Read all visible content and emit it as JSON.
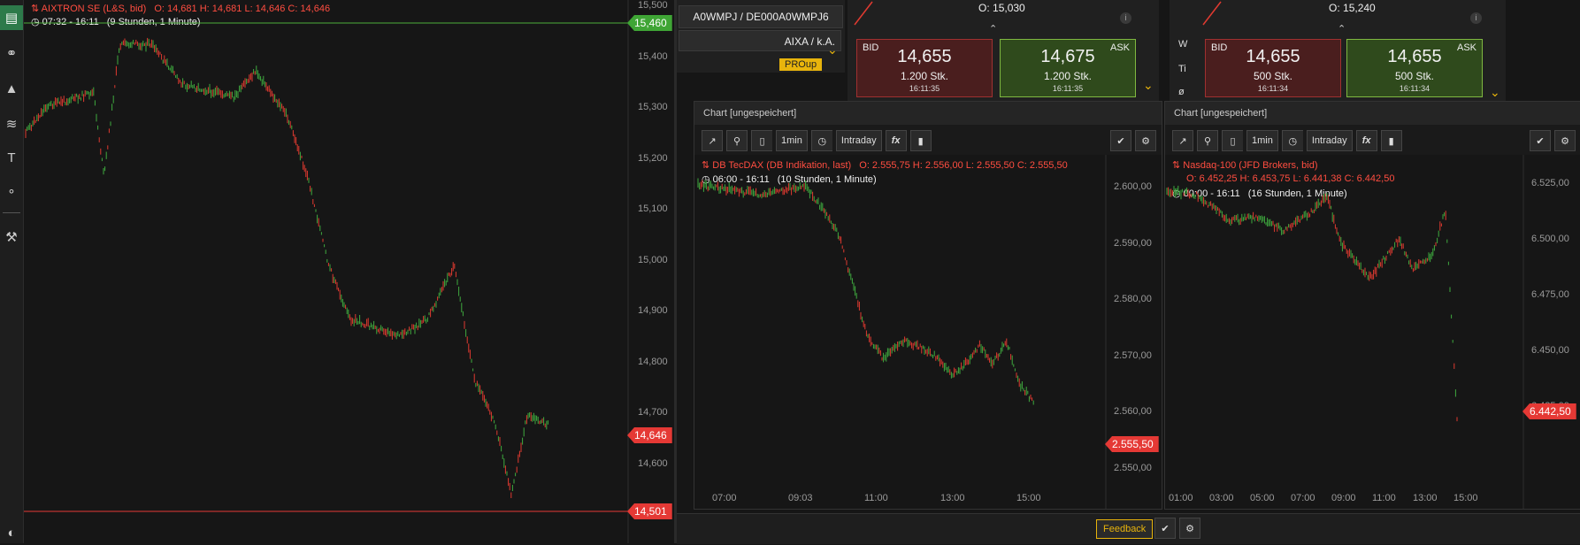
{
  "main": {
    "title": "AIXTRON SE (L&S, bid)",
    "ohlc": "O: 14,681  H: 14,681  L: 14,646  C: 14,646",
    "period": "07:32 - 16:11",
    "period_desc": "(9 Stunden, 1 Minute)",
    "y_ticks": [
      "15,500",
      "15,400",
      "15,300",
      "15,200",
      "15,100",
      "15,000",
      "14,900",
      "14,800",
      "14,700",
      "14,600"
    ],
    "tag_high": "15,460",
    "tag_last": "14,646",
    "tag_low": "14,501"
  },
  "top_panel": {
    "symbol": "A0WMPJ / DE000A0WMPJ6",
    "ticker": "AIXA / k.A.",
    "badge": "PROup"
  },
  "quote1": {
    "o_label": "O:",
    "o_value": "15,030",
    "bid_label": "BID",
    "bid_price": "14,655",
    "bid_qty": "1.200 Stk.",
    "bid_time": "16:11:35",
    "ask_label": "ASK",
    "ask_price": "14,675",
    "ask_qty": "1.200 Stk.",
    "ask_time": "16:11:35"
  },
  "quote2": {
    "o_label": "O:",
    "o_value": "15,240",
    "side_w": "W",
    "side_ti": "Ti",
    "side_o": "ø",
    "bid_label": "BID",
    "bid_price": "14,655",
    "bid_qty": "500 Stk.",
    "bid_time": "16:11:34",
    "ask_label": "ASK",
    "ask_price": "14,655",
    "ask_qty": "500 Stk.",
    "ask_time": "16:11:34"
  },
  "chart2": {
    "window_title": "Chart [ungespeichert]",
    "interval": "1min",
    "range": "Intraday",
    "fx": "fx",
    "title": "DB TecDAX (DB Indikation, last)",
    "ohlc": "O: 2.555,75  H: 2.556,00  L: 2.555,50  C: 2.555,50",
    "period": "06:00 - 16:11",
    "period_desc": "(10 Stunden, 1 Minute)",
    "y_ticks": [
      "2.600,00",
      "2.590,00",
      "2.580,00",
      "2.570,00",
      "2.560,00",
      "2.550,00"
    ],
    "x_ticks": [
      "07:00",
      "09:03",
      "11:00",
      "13:00",
      "15:00"
    ],
    "tag_last": "2.555,50"
  },
  "chart3": {
    "window_title": "Chart [ungespeichert]",
    "interval": "1min",
    "range": "Intraday",
    "fx": "fx",
    "title": "Nasdaq-100 (JFD Brokers, bid)",
    "ohlc": "O: 6.452,25  H: 6.453,75  L: 6.441,38  C: 6.442,50",
    "period": "00:00 - 16:11",
    "period_desc": "(16 Stunden, 1 Minute)",
    "y_ticks": [
      "6.525,00",
      "6.500,00",
      "6.475,00",
      "6.450,00",
      "6.425,00"
    ],
    "x_ticks": [
      "01:00",
      "03:00",
      "05:00",
      "07:00",
      "09:00",
      "11:00",
      "13:00",
      "15:00"
    ],
    "tag_last": "6.442,50"
  },
  "footer": {
    "feedback": "Feedback"
  },
  "colors": {
    "up": "#3faa3f",
    "down": "#e03a30",
    "accent": "#e8b40c",
    "last_tag": "#e53935",
    "high_tag": "#3fa535"
  }
}
